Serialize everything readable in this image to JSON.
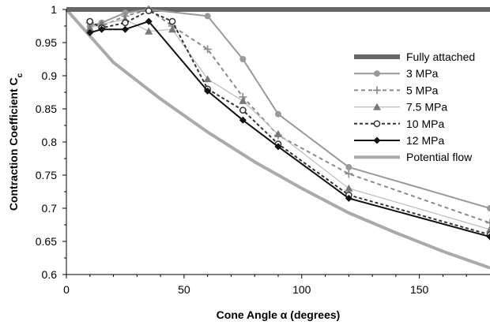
{
  "chart_data": {
    "type": "line",
    "xlabel": "Cone Angle α (degrees)",
    "ylabel": "Contraction Coefficient C",
    "ylabel_sub": "c",
    "xlim": [
      0,
      180
    ],
    "ylim": [
      0.6,
      1.0
    ],
    "x_ticks": [
      0,
      50,
      100,
      150
    ],
    "y_ticks": [
      0.6,
      0.65,
      0.7,
      0.75,
      0.8,
      0.85,
      0.9,
      0.95,
      1.0
    ],
    "grid": false,
    "legend_position": "right",
    "series": [
      {
        "name": "Fully attached",
        "color": "#666666",
        "width": 6,
        "dash": "none",
        "marker": "none",
        "x": [
          0,
          180
        ],
        "y": [
          1.0,
          1.0
        ]
      },
      {
        "name": "3 MPa",
        "color": "#999999",
        "width": 2,
        "dash": "none",
        "marker": "circle-filled",
        "x": [
          10,
          15,
          25,
          35,
          60,
          75,
          90,
          120,
          180
        ],
        "y": [
          0.975,
          0.98,
          0.995,
          1.0,
          0.99,
          0.925,
          0.842,
          0.762,
          0.7
        ]
      },
      {
        "name": "5 MPa",
        "color": "#8a8a8a",
        "width": 2,
        "dash": "5,4",
        "marker": "plus",
        "x": [
          10,
          15,
          25,
          35,
          45,
          60,
          75,
          90,
          120,
          180
        ],
        "y": [
          0.98,
          0.975,
          0.99,
          1.0,
          0.975,
          0.94,
          0.868,
          0.81,
          0.752,
          0.678
        ]
      },
      {
        "name": "7.5 MPa",
        "color": "#bbbbbb",
        "width": 1.2,
        "dash": "none",
        "marker": "triangle-filled",
        "marker_color": "#777777",
        "x": [
          10,
          15,
          25,
          35,
          45,
          60,
          75,
          90,
          120,
          180
        ],
        "y": [
          0.972,
          0.978,
          0.985,
          0.967,
          0.97,
          0.895,
          0.862,
          0.812,
          0.73,
          0.668
        ]
      },
      {
        "name": "10 MPa",
        "color": "#333333",
        "width": 2,
        "dash": "4,3",
        "marker": "circle-open",
        "x": [
          10,
          15,
          25,
          35,
          45,
          60,
          75,
          90,
          120,
          180
        ],
        "y": [
          0.982,
          0.972,
          0.98,
          0.998,
          0.982,
          0.88,
          0.848,
          0.797,
          0.72,
          0.66
        ]
      },
      {
        "name": "12 MPa",
        "color": "#111111",
        "width": 2,
        "dash": "none",
        "marker": "diamond-filled",
        "x": [
          10,
          15,
          25,
          35,
          60,
          75,
          90,
          120,
          180
        ],
        "y": [
          0.965,
          0.97,
          0.97,
          0.982,
          0.877,
          0.833,
          0.793,
          0.715,
          0.657
        ]
      },
      {
        "name": "Potential flow",
        "color": "#aaaaaa",
        "width": 4,
        "dash": "none",
        "marker": "none",
        "x": [
          0,
          20,
          40,
          60,
          80,
          100,
          120,
          140,
          160,
          180
        ],
        "y": [
          1.0,
          0.92,
          0.865,
          0.815,
          0.77,
          0.73,
          0.693,
          0.663,
          0.635,
          0.61
        ]
      }
    ]
  }
}
